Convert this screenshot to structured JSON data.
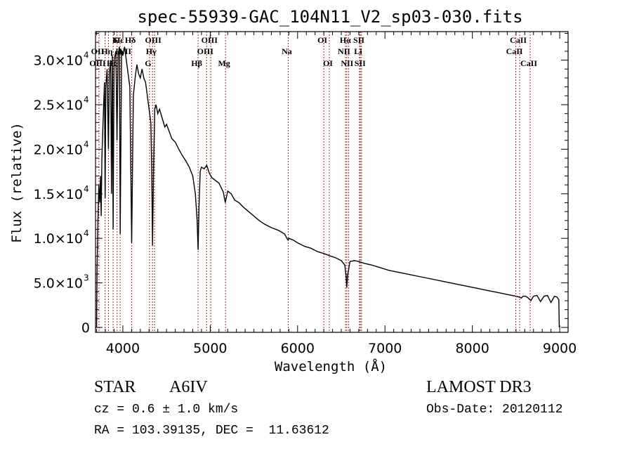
{
  "chart_data": {
    "type": "line",
    "title": "spec-55939-GAC_104N11_V2_sp03-030.fits",
    "xlabel": "Wavelength (Å)",
    "ylabel": "Flux (relative)",
    "xlim": [
      3687,
      9096
    ],
    "ylim": [
      -550,
      33200
    ],
    "grid": false,
    "x_ticks": [
      {
        "value": 4000,
        "label": "4000"
      },
      {
        "value": 5000,
        "label": "5000"
      },
      {
        "value": 6000,
        "label": "6000"
      },
      {
        "value": 7000,
        "label": "7000"
      },
      {
        "value": 8000,
        "label": "8000"
      },
      {
        "value": 9000,
        "label": "9000"
      }
    ],
    "y_ticks": [
      {
        "value": 0,
        "mant": "0",
        "exp": ""
      },
      {
        "value": 5000,
        "mant": "5.0×10",
        "exp": "3"
      },
      {
        "value": 10000,
        "mant": "1.0×10",
        "exp": "4"
      },
      {
        "value": 15000,
        "mant": "1.5×10",
        "exp": "4"
      },
      {
        "value": 20000,
        "mant": "2.0×10",
        "exp": "4"
      },
      {
        "value": 25000,
        "mant": "2.5×10",
        "exp": "4"
      },
      {
        "value": 30000,
        "mant": "3.0×10",
        "exp": "4"
      }
    ],
    "series": [
      {
        "name": "spectrum",
        "color": "#000000",
        "points": [
          [
            3700,
            0
          ],
          [
            3705,
            6500
          ],
          [
            3715,
            12000
          ],
          [
            3725,
            16000
          ],
          [
            3735,
            14000
          ],
          [
            3745,
            17000
          ],
          [
            3752,
            12500
          ],
          [
            3760,
            19000
          ],
          [
            3770,
            22000
          ],
          [
            3780,
            25000
          ],
          [
            3790,
            27500
          ],
          [
            3797,
            14500
          ],
          [
            3805,
            27000
          ],
          [
            3820,
            29000
          ],
          [
            3835,
            20000
          ],
          [
            3845,
            28500
          ],
          [
            3860,
            30000
          ],
          [
            3870,
            15000
          ],
          [
            3880,
            30500
          ],
          [
            3889,
            11000
          ],
          [
            3900,
            30000
          ],
          [
            3920,
            31000
          ],
          [
            3933,
            21000
          ],
          [
            3945,
            30500
          ],
          [
            3960,
            31500
          ],
          [
            3970,
            10500
          ],
          [
            3985,
            31000
          ],
          [
            4000,
            30500
          ],
          [
            4020,
            31500
          ],
          [
            4040,
            30000
          ],
          [
            4060,
            28500
          ],
          [
            4080,
            27000
          ],
          [
            4101,
            9500
          ],
          [
            4120,
            26000
          ],
          [
            4140,
            28000
          ],
          [
            4160,
            29500
          ],
          [
            4180,
            28500
          ],
          [
            4200,
            28000
          ],
          [
            4220,
            29000
          ],
          [
            4240,
            28000
          ],
          [
            4260,
            27500
          ],
          [
            4280,
            26000
          ],
          [
            4300,
            24500
          ],
          [
            4320,
            23000
          ],
          [
            4330,
            18000
          ],
          [
            4340,
            9200
          ],
          [
            4352,
            18000
          ],
          [
            4365,
            24500
          ],
          [
            4380,
            25000
          ],
          [
            4400,
            24000
          ],
          [
            4420,
            24500
          ],
          [
            4450,
            23500
          ],
          [
            4480,
            22500
          ],
          [
            4500,
            22800
          ],
          [
            4530,
            22000
          ],
          [
            4560,
            21200
          ],
          [
            4600,
            20800
          ],
          [
            4640,
            20000
          ],
          [
            4680,
            19300
          ],
          [
            4720,
            18700
          ],
          [
            4760,
            18000
          ],
          [
            4800,
            17000
          ],
          [
            4830,
            15000
          ],
          [
            4850,
            12000
          ],
          [
            4861,
            8700
          ],
          [
            4872,
            13500
          ],
          [
            4885,
            17500
          ],
          [
            4900,
            18000
          ],
          [
            4930,
            17800
          ],
          [
            4960,
            18200
          ],
          [
            4990,
            17300
          ],
          [
            5020,
            16800
          ],
          [
            5060,
            16500
          ],
          [
            5100,
            16200
          ],
          [
            5150,
            15200
          ],
          [
            5172,
            14000
          ],
          [
            5200,
            15300
          ],
          [
            5240,
            15000
          ],
          [
            5280,
            14300
          ],
          [
            5330,
            14000
          ],
          [
            5380,
            13500
          ],
          [
            5440,
            13000
          ],
          [
            5500,
            12500
          ],
          [
            5560,
            12000
          ],
          [
            5620,
            11600
          ],
          [
            5700,
            11200
          ],
          [
            5780,
            10900
          ],
          [
            5850,
            10500
          ],
          [
            5890,
            9800
          ],
          [
            5900,
            10000
          ],
          [
            5950,
            9800
          ],
          [
            6000,
            9500
          ],
          [
            6080,
            9100
          ],
          [
            6150,
            8900
          ],
          [
            6230,
            8500
          ],
          [
            6300,
            8300
          ],
          [
            6380,
            8000
          ],
          [
            6440,
            7800
          ],
          [
            6500,
            7500
          ],
          [
            6540,
            7000
          ],
          [
            6555,
            5800
          ],
          [
            6563,
            4500
          ],
          [
            6575,
            6000
          ],
          [
            6600,
            7400
          ],
          [
            6650,
            7500
          ],
          [
            6700,
            7400
          ],
          [
            6760,
            7200
          ],
          [
            6850,
            7000
          ],
          [
            6950,
            6700
          ],
          [
            7050,
            6400
          ],
          [
            7150,
            6200
          ],
          [
            7250,
            6000
          ],
          [
            7350,
            5800
          ],
          [
            7450,
            5600
          ],
          [
            7550,
            5400
          ],
          [
            7650,
            5200
          ],
          [
            7750,
            5000
          ],
          [
            7850,
            4800
          ],
          [
            7950,
            4600
          ],
          [
            8050,
            4400
          ],
          [
            8150,
            4200
          ],
          [
            8250,
            4000
          ],
          [
            8350,
            3800
          ],
          [
            8450,
            3600
          ],
          [
            8500,
            3500
          ],
          [
            8540,
            3400
          ],
          [
            8560,
            3300
          ],
          [
            8580,
            3500
          ],
          [
            8610,
            3500
          ],
          [
            8640,
            3300
          ],
          [
            8670,
            3000
          ],
          [
            8700,
            3500
          ],
          [
            8740,
            3600
          ],
          [
            8780,
            2900
          ],
          [
            8820,
            3500
          ],
          [
            8860,
            3600
          ],
          [
            8900,
            2800
          ],
          [
            8940,
            3500
          ],
          [
            8970,
            3400
          ],
          [
            8990,
            3100
          ],
          [
            8995,
            0
          ]
        ]
      }
    ],
    "spectral_lines": [
      {
        "label": "Hε",
        "wavelength": 3970,
        "row": 0
      },
      {
        "label": "K",
        "wavelength": 3934,
        "row": 0
      },
      {
        "label": "Hδ",
        "wavelength": 4102,
        "row": 0
      },
      {
        "label": "OIII",
        "wavelength": 4363,
        "row": 0
      },
      {
        "label": "OIII",
        "wavelength": 5007,
        "row": 0
      },
      {
        "label": "OI",
        "wavelength": 6300,
        "row": 0
      },
      {
        "label": "Hα",
        "wavelength": 6563,
        "row": 0
      },
      {
        "label": "SII",
        "wavelength": 6717,
        "row": 0
      },
      {
        "label": "CaII",
        "wavelength": 8542,
        "row": 0
      },
      {
        "label": "OII",
        "wavelength": 3727,
        "row": 1
      },
      {
        "label": "Hη",
        "wavelength": 3835,
        "row": 1
      },
      {
        "label": "H",
        "wavelength": 3969,
        "row": 1
      },
      {
        "label": "NII",
        "wavelength": 4041,
        "row": 1
      },
      {
        "label": "Hγ",
        "wavelength": 4340,
        "row": 1
      },
      {
        "label": "OIII",
        "wavelength": 4959,
        "row": 1
      },
      {
        "label": "Na",
        "wavelength": 5893,
        "row": 1
      },
      {
        "label": "NII",
        "wavelength": 6548,
        "row": 1
      },
      {
        "label": "Li",
        "wavelength": 6708,
        "row": 1
      },
      {
        "label": "CaII",
        "wavelength": 8498,
        "row": 1
      },
      {
        "label": "OIII",
        "wavelength": 3727,
        "row": 2
      },
      {
        "label": "Hζ",
        "wavelength": 3889,
        "row": 2
      },
      {
        "label": "G",
        "wavelength": 4305,
        "row": 2
      },
      {
        "label": "Hβ",
        "wavelength": 4861,
        "row": 2
      },
      {
        "label": "Mg",
        "wavelength": 5175,
        "row": 2
      },
      {
        "label": "OI",
        "wavelength": 6363,
        "row": 2
      },
      {
        "label": "NII",
        "wavelength": 6583,
        "row": 2
      },
      {
        "label": "SII",
        "wavelength": 6731,
        "row": 2
      },
      {
        "label": "CaII",
        "wavelength": 8662,
        "row": 2
      }
    ],
    "line_marker_color": "#a52a2a",
    "line_wavelengths": [
      3727,
      3797,
      3835,
      3889,
      3934,
      3969,
      4102,
      4305,
      4340,
      4363,
      4861,
      4959,
      5007,
      5175,
      5893,
      6300,
      6363,
      6548,
      6563,
      6583,
      6708,
      6717,
      6731,
      8498,
      8542,
      8662
    ]
  },
  "info": {
    "object_class": "STAR",
    "subclass": "A6IV",
    "survey": "LAMOST DR3",
    "redshift_line": "cz = 0.6 ± 1.0 km/s",
    "obs_date": "Obs-Date: 20120112",
    "coords": "RA = 103.39135, DEC =  11.63612"
  }
}
